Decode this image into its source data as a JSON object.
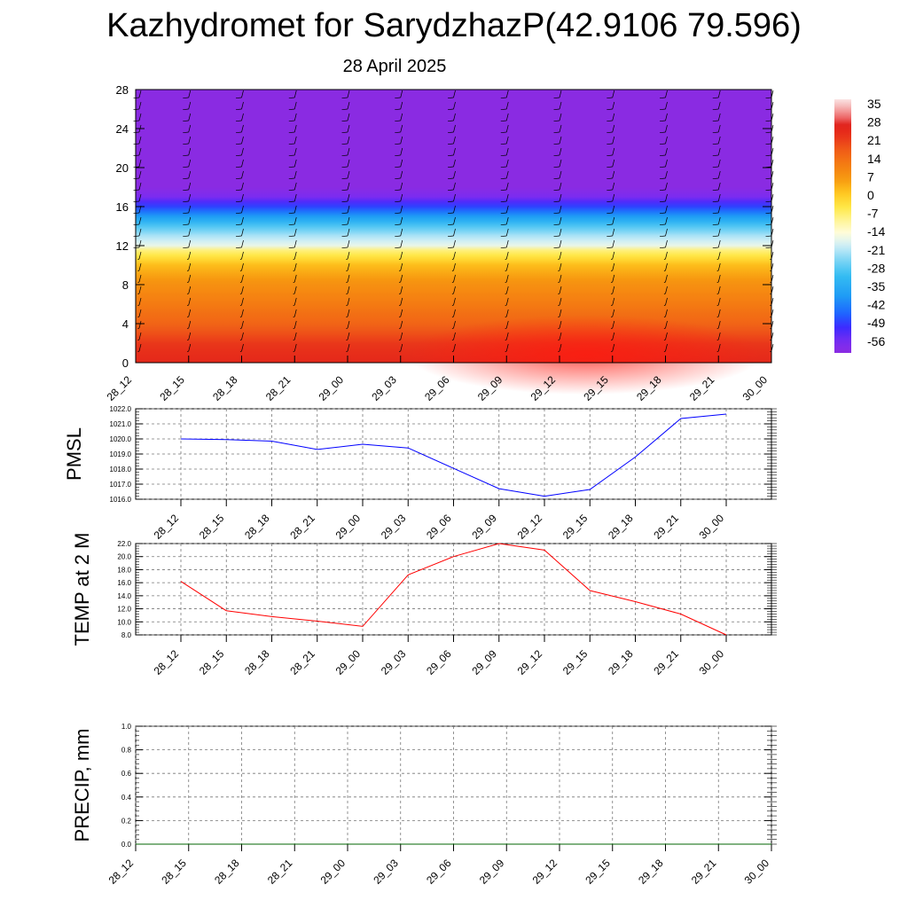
{
  "title": "Kazhydromet for SarydzhazP(42.9106 79.596)",
  "subtitle": "28 April 2025",
  "chart_data": [
    {
      "type": "heatmap",
      "name": "temperature-height cross-section",
      "x_ticks": [
        "28_12",
        "28_15",
        "28_18",
        "28_21",
        "29_00",
        "29_03",
        "29_06",
        "29_09",
        "29_12",
        "29_15",
        "29_18",
        "29_21",
        "30_00"
      ],
      "y_ticks": [
        "0",
        "4",
        "8",
        "12",
        "16",
        "20",
        "24",
        "28"
      ],
      "ylim": [
        0,
        28
      ],
      "colorbar_labels": [
        "35",
        "28",
        "21",
        "14",
        "7",
        "0",
        "-7",
        "-14",
        "-21",
        "-28",
        "-35",
        "-42",
        "-49",
        "-56"
      ],
      "colorbar_range": [
        -60,
        38
      ],
      "colors": {
        "warm": "#e0201a",
        "orange": "#f79a10",
        "yellow": "#ffe94a",
        "cold": "#8a2be2",
        "blue": "#1e63ff"
      },
      "levels": [
        {
          "h": 0,
          "t": 26
        },
        {
          "h": 2,
          "t": 23
        },
        {
          "h": 4,
          "t": 17
        },
        {
          "h": 6,
          "t": 13
        },
        {
          "h": 8,
          "t": 9
        },
        {
          "h": 10,
          "t": 3
        },
        {
          "h": 11.5,
          "t": -7
        },
        {
          "h": 12,
          "t": -16
        },
        {
          "h": 13,
          "t": -21
        },
        {
          "h": 14,
          "t": -28
        },
        {
          "h": 15,
          "t": -38
        },
        {
          "h": 16,
          "t": -48
        },
        {
          "h": 17,
          "t": -56
        },
        {
          "h": 18,
          "t": -60
        },
        {
          "h": 28,
          "t": -60
        }
      ]
    },
    {
      "type": "line",
      "ylabel": "PMSL",
      "categories": [
        "28_12",
        "28_15",
        "28_18",
        "28_21",
        "29_00",
        "29_03",
        "29_06",
        "29_09",
        "29_12",
        "29_15",
        "29_18",
        "29_21",
        "30_00"
      ],
      "y_ticks": [
        "1016.0",
        "1017.0",
        "1018.0",
        "1019.0",
        "1020.0",
        "1021.0",
        "1022.0"
      ],
      "ylim": [
        1016.0,
        1022.0
      ],
      "color": "#0000ff",
      "values": [
        1020.0,
        1019.95,
        1019.85,
        1019.3,
        1019.65,
        1019.4,
        1018.05,
        1016.7,
        1016.2,
        1016.65,
        1018.8,
        1021.35,
        1021.65
      ]
    },
    {
      "type": "line",
      "ylabel": "TEMP at 2 M",
      "categories": [
        "28_12",
        "28_15",
        "28_18",
        "28_21",
        "29_00",
        "29_03",
        "29_06",
        "29_09",
        "29_12",
        "29_15",
        "29_18",
        "29_21",
        "30_00"
      ],
      "y_ticks": [
        "8.0",
        "10.0",
        "12.0",
        "14.0",
        "16.0",
        "18.0",
        "20.0",
        "22.0"
      ],
      "ylim": [
        8.0,
        22.0
      ],
      "color": "#ff0000",
      "values": [
        16.2,
        11.7,
        10.8,
        10.1,
        9.3,
        17.2,
        20.0,
        22.0,
        21.0,
        14.8,
        13.1,
        11.2,
        8.0
      ]
    },
    {
      "type": "line",
      "ylabel": "PRECIP, mm",
      "categories": [
        "28_12",
        "28_15",
        "28_18",
        "28_21",
        "29_00",
        "29_03",
        "29_06",
        "29_09",
        "29_12",
        "29_15",
        "29_18",
        "29_21",
        "30_00"
      ],
      "y_ticks": [
        "0.0",
        "0.2",
        "0.4",
        "0.6",
        "0.8",
        "1.0"
      ],
      "ylim": [
        0.0,
        1.0
      ],
      "color": "#006400",
      "values": [
        0,
        0,
        0,
        0,
        0,
        0,
        0,
        0,
        0,
        0,
        0,
        0,
        0
      ]
    }
  ]
}
